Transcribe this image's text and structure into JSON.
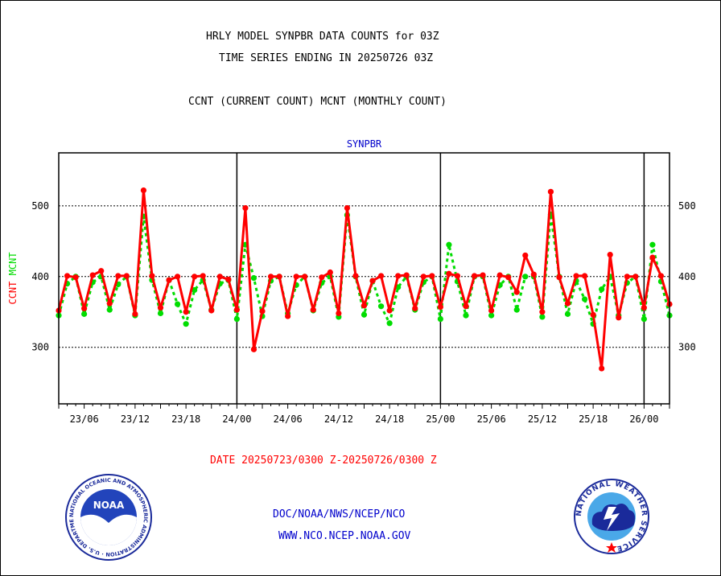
{
  "header": {
    "line1": "HRLY MODEL SYNPBR DATA COUNTS for 03Z",
    "line2": "TIME SERIES ENDING IN 20250726 03Z",
    "line3": "CCNT (CURRENT COUNT) MCNT (MONTHLY COUNT)"
  },
  "footer": {
    "date_range": "DATE 20250723/0300 Z-20250726/0300 Z",
    "org": "DOC/NOAA/NWS/NCEP/NCO",
    "url": "WWW.NCO.NCEP.NOAA.GOV",
    "noaa_logo_text": "NOAA",
    "noaa_seal_ring": "NATIONAL OCEANIC AND ATMOSPHERIC ADMINISTRATION · U.S. DEPARTMENT OF COMMERCE",
    "nws_seal_ring": "NATIONAL WEATHER SERVICE"
  },
  "colors": {
    "ccnt": "#ff0000",
    "mcnt": "#00dd00",
    "title_blue": "#0000cc",
    "footer_red": "#ff0000",
    "footer_blue": "#0000cc"
  },
  "chart_data": {
    "type": "line",
    "title": "SYNPBR",
    "ylabel_parts": [
      {
        "text": "CCNT",
        "color": "#ff0000"
      },
      {
        "text": "MCNT",
        "color": "#00dd00"
      }
    ],
    "x_hours_range": [
      0,
      72
    ],
    "ylim": [
      220,
      575
    ],
    "y_ticks": [
      300,
      400,
      500
    ],
    "x_tick_labels": [
      {
        "hour": 3,
        "label": "23/06"
      },
      {
        "hour": 9,
        "label": "23/12"
      },
      {
        "hour": 15,
        "label": "23/18"
      },
      {
        "hour": 21,
        "label": "24/00"
      },
      {
        "hour": 27,
        "label": "24/06"
      },
      {
        "hour": 33,
        "label": "24/12"
      },
      {
        "hour": 39,
        "label": "24/18"
      },
      {
        "hour": 45,
        "label": "25/00"
      },
      {
        "hour": 51,
        "label": "25/06"
      },
      {
        "hour": 57,
        "label": "25/12"
      },
      {
        "hour": 63,
        "label": "25/18"
      },
      {
        "hour": 69,
        "label": "26/00"
      }
    ],
    "day_boundaries": [
      21,
      45,
      69
    ],
    "grid": true,
    "series": [
      {
        "name": "CCNT",
        "color": "#ff0000",
        "values": [
          352,
          401,
          399,
          355,
          402,
          408,
          362,
          401,
          401,
          347,
          522,
          401,
          356,
          395,
          400,
          350,
          400,
          401,
          352,
          400,
          396,
          353,
          497,
          297,
          351,
          400,
          400,
          344,
          400,
          400,
          353,
          399,
          406,
          348,
          497,
          401,
          359,
          394,
          401,
          352,
          401,
          402,
          355,
          400,
          401,
          357,
          404,
          401,
          358,
          401,
          402,
          352,
          402,
          399,
          378,
          430,
          403,
          350,
          520,
          399,
          362,
          401,
          401,
          346,
          270,
          431,
          342,
          400,
          400,
          356,
          427,
          401,
          361
        ]
      },
      {
        "name": "MCNT",
        "color": "#00dd00",
        "values": [
          345,
          390,
          400,
          347,
          392,
          400,
          353,
          389,
          400,
          345,
          485,
          395,
          348,
          395,
          361,
          333,
          381,
          395,
          353,
          390,
          395,
          340,
          445,
          398,
          344,
          394,
          400,
          348,
          388,
          400,
          352,
          391,
          400,
          343,
          487,
          400,
          346,
          394,
          358,
          334,
          385,
          400,
          353,
          392,
          400,
          340,
          445,
          393,
          345,
          400,
          400,
          345,
          388,
          400,
          353,
          400,
          400,
          343,
          488,
          400,
          347,
          394,
          368,
          333,
          382,
          400,
          345,
          391,
          400,
          340,
          445,
          393,
          345
        ]
      }
    ]
  }
}
